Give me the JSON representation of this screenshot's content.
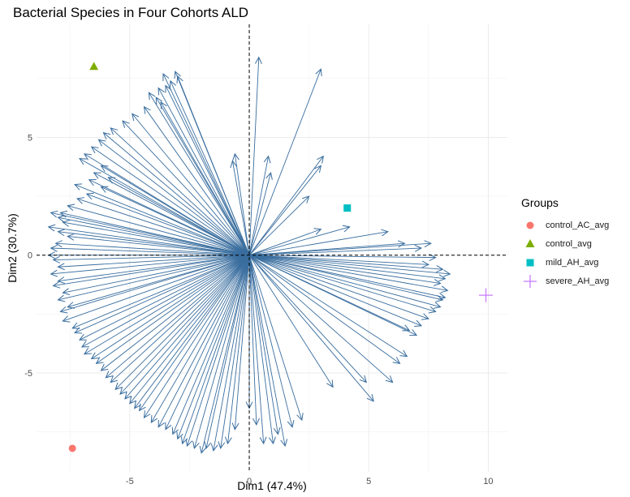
{
  "chart_data": {
    "type": "scatter",
    "title": "Bacterial Species in Four Cohorts ALD",
    "xlabel": "Dim1 (47.4%)",
    "ylabel": "Dim2 (30.7%)",
    "xlim": [
      -8.9,
      10.8
    ],
    "ylim": [
      -9.2,
      9.8
    ],
    "x_ticks": [
      -5,
      0,
      5,
      10
    ],
    "y_ticks": [
      -5,
      0,
      5
    ],
    "x_tick_labels": [
      "-5",
      "0",
      "5",
      "10"
    ],
    "y_tick_labels": [
      "-5",
      "0",
      "5"
    ],
    "grid": true,
    "reference_lines": {
      "x": 0,
      "y": 0,
      "style": "dashed"
    },
    "legend": {
      "title": "Groups",
      "placement": "right"
    },
    "series": [
      {
        "name": "control_AC_avg",
        "color": "#F8766D",
        "shape": "circle",
        "x": [
          -7.4
        ],
        "y": [
          -8.2
        ]
      },
      {
        "name": "control_avg",
        "color": "#7CAE00",
        "shape": "triangle",
        "x": [
          -6.5
        ],
        "y": [
          8.0
        ]
      },
      {
        "name": "mild_AH_avg",
        "color": "#00BFC4",
        "shape": "square",
        "x": [
          4.1
        ],
        "y": [
          2.0
        ]
      },
      {
        "name": "severe_AH_avg",
        "color": "#C77CFF",
        "shape": "plus",
        "x": [
          9.9
        ],
        "y": [
          -1.7
        ]
      }
    ],
    "arrows": {
      "color": "#3A6E9F",
      "description": "variable loading vectors from origin",
      "endpoints": [
        [
          0.4,
          8.4
        ],
        [
          3.0,
          7.9
        ],
        [
          -3.1,
          7.8
        ],
        [
          -3.6,
          7.7
        ],
        [
          -3.0,
          7.6
        ],
        [
          -3.3,
          7.4
        ],
        [
          -3.5,
          7.2
        ],
        [
          -3.8,
          7.1
        ],
        [
          -4.2,
          6.9
        ],
        [
          -3.9,
          6.7
        ],
        [
          -3.7,
          6.5
        ],
        [
          -4.4,
          6.3
        ],
        [
          -4.9,
          6.0
        ],
        [
          -5.3,
          5.7
        ],
        [
          -5.8,
          5.4
        ],
        [
          -6.1,
          5.2
        ],
        [
          -6.3,
          4.9
        ],
        [
          -6.6,
          4.6
        ],
        [
          -6.9,
          4.3
        ],
        [
          -7.1,
          4.1
        ],
        [
          -6.2,
          3.8
        ],
        [
          -6.5,
          3.5
        ],
        [
          -5.9,
          3.3
        ],
        [
          -6.7,
          3.2
        ],
        [
          -7.3,
          3.0
        ],
        [
          -6.2,
          2.9
        ],
        [
          -6.8,
          2.6
        ],
        [
          -7.2,
          2.4
        ],
        [
          -7.6,
          2.1
        ],
        [
          -7.9,
          1.8
        ],
        [
          -8.3,
          1.8
        ],
        [
          -8.0,
          1.6
        ],
        [
          -7.8,
          1.4
        ],
        [
          -8.4,
          1.2
        ],
        [
          -8.0,
          1.0
        ],
        [
          -7.6,
          0.8
        ],
        [
          -8.1,
          0.5
        ],
        [
          -8.3,
          0.3
        ],
        [
          -8.4,
          0.0
        ],
        [
          -8.2,
          -0.2
        ],
        [
          -8.0,
          -0.5
        ],
        [
          -8.3,
          -0.8
        ],
        [
          -8.0,
          -1.1
        ],
        [
          -8.2,
          -1.3
        ],
        [
          -7.8,
          -1.6
        ],
        [
          -8.0,
          -1.9
        ],
        [
          -7.6,
          -2.2
        ],
        [
          -7.9,
          -2.4
        ],
        [
          -7.8,
          -2.8
        ],
        [
          -7.4,
          -3.1
        ],
        [
          -7.3,
          -3.3
        ],
        [
          -7.1,
          -3.6
        ],
        [
          -7.0,
          -3.9
        ],
        [
          -6.9,
          -4.2
        ],
        [
          -6.6,
          -4.4
        ],
        [
          -6.4,
          -4.6
        ],
        [
          -6.2,
          -4.9
        ],
        [
          -6.0,
          -5.2
        ],
        [
          -5.8,
          -5.4
        ],
        [
          -5.6,
          -5.7
        ],
        [
          -5.4,
          -5.9
        ],
        [
          -5.2,
          -6.1
        ],
        [
          -5.0,
          -6.3
        ],
        [
          -4.8,
          -6.5
        ],
        [
          -4.6,
          -6.6
        ],
        [
          -4.4,
          -6.9
        ],
        [
          -4.1,
          -7.1
        ],
        [
          -3.8,
          -7.3
        ],
        [
          -3.5,
          -7.4
        ],
        [
          -3.2,
          -7.6
        ],
        [
          -3.0,
          -7.8
        ],
        [
          -2.8,
          -8.0
        ],
        [
          -2.6,
          -8.1
        ],
        [
          -2.3,
          -8.2
        ],
        [
          -2.0,
          -8.4
        ],
        [
          -1.8,
          -8.2
        ],
        [
          -1.5,
          -8.3
        ],
        [
          -1.2,
          -8.2
        ],
        [
          -0.9,
          -8.0
        ],
        [
          -0.6,
          -7.4
        ],
        [
          0.0,
          -6.5
        ],
        [
          0.3,
          -7.2
        ],
        [
          0.6,
          -8.0
        ],
        [
          1.0,
          -8.0
        ],
        [
          1.5,
          -8.1
        ],
        [
          1.2,
          -7.6
        ],
        [
          1.8,
          -7.3
        ],
        [
          2.2,
          -7.0
        ],
        [
          3.5,
          -5.6
        ],
        [
          4.9,
          -5.4
        ],
        [
          5.2,
          -6.2
        ],
        [
          6.0,
          -5.4
        ],
        [
          6.3,
          -4.6
        ],
        [
          6.6,
          -4.3
        ],
        [
          6.7,
          -3.2
        ],
        [
          7.0,
          -3.4
        ],
        [
          7.2,
          -3.0
        ],
        [
          7.5,
          -2.7
        ],
        [
          7.8,
          -2.4
        ],
        [
          8.0,
          -2.2
        ],
        [
          8.1,
          -1.9
        ],
        [
          8.2,
          -1.8
        ],
        [
          8.3,
          -1.5
        ],
        [
          8.0,
          -1.2
        ],
        [
          8.2,
          -1.0
        ],
        [
          8.4,
          -0.8
        ],
        [
          8.1,
          -0.6
        ],
        [
          7.5,
          -0.4
        ],
        [
          7.8,
          -0.1
        ],
        [
          7.2,
          0.3
        ],
        [
          7.6,
          0.5
        ],
        [
          6.5,
          0.5
        ],
        [
          5.8,
          1.0
        ],
        [
          4.2,
          1.2
        ],
        [
          3.0,
          1.1
        ],
        [
          2.5,
          2.5
        ],
        [
          3.1,
          4.2
        ],
        [
          3.0,
          3.8
        ],
        [
          0.8,
          4.2
        ],
        [
          0.9,
          3.5
        ],
        [
          -0.6,
          4.3
        ],
        [
          -0.7,
          4.0
        ]
      ]
    }
  }
}
